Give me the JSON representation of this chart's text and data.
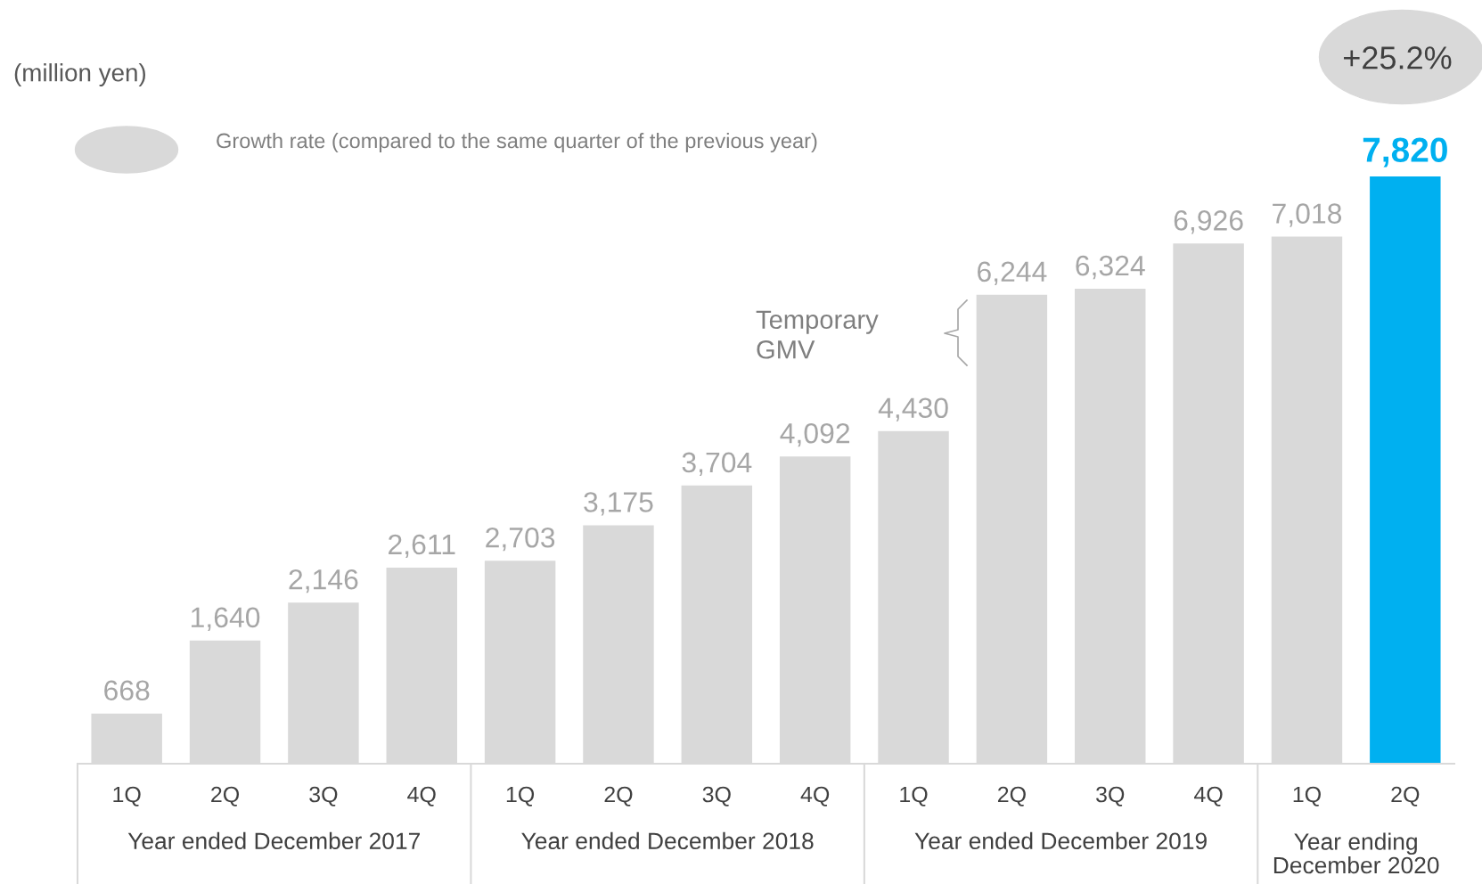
{
  "chart_data": {
    "type": "bar",
    "categories": [
      "1Q",
      "2Q",
      "3Q",
      "4Q",
      "1Q",
      "2Q",
      "3Q",
      "4Q",
      "1Q",
      "2Q",
      "3Q",
      "4Q",
      "1Q",
      "2Q"
    ],
    "values": [
      668,
      1640,
      2146,
      2611,
      2703,
      3175,
      3704,
      4092,
      4430,
      6244,
      6324,
      6926,
      7018,
      7820
    ],
    "colors": [
      "#d9d9d9",
      "#d9d9d9",
      "#d9d9d9",
      "#d9d9d9",
      "#d9d9d9",
      "#d9d9d9",
      "#d9d9d9",
      "#d9d9d9",
      "#d9d9d9",
      "#d9d9d9",
      "#d9d9d9",
      "#d9d9d9",
      "#d9d9d9",
      "#00b0f0"
    ],
    "value_labels": [
      "668",
      "1,640",
      "2,146",
      "2,611",
      "2,703",
      "3,175",
      "3,704",
      "4,092",
      "4,430",
      "6,244",
      "6,324",
      "6,926",
      "7,018",
      "7,820"
    ],
    "grid": false,
    "legend": false,
    "annotations": [
      "(million yen)",
      "Growth rate (compared to the same quarter of the previous year)",
      "+25.2%",
      "Temporary\nGMV",
      "Year ended December 2017",
      "Year ended December 2018",
      "Year ended December 2019",
      "Year ending\nDecember 2020"
    ]
  }
}
